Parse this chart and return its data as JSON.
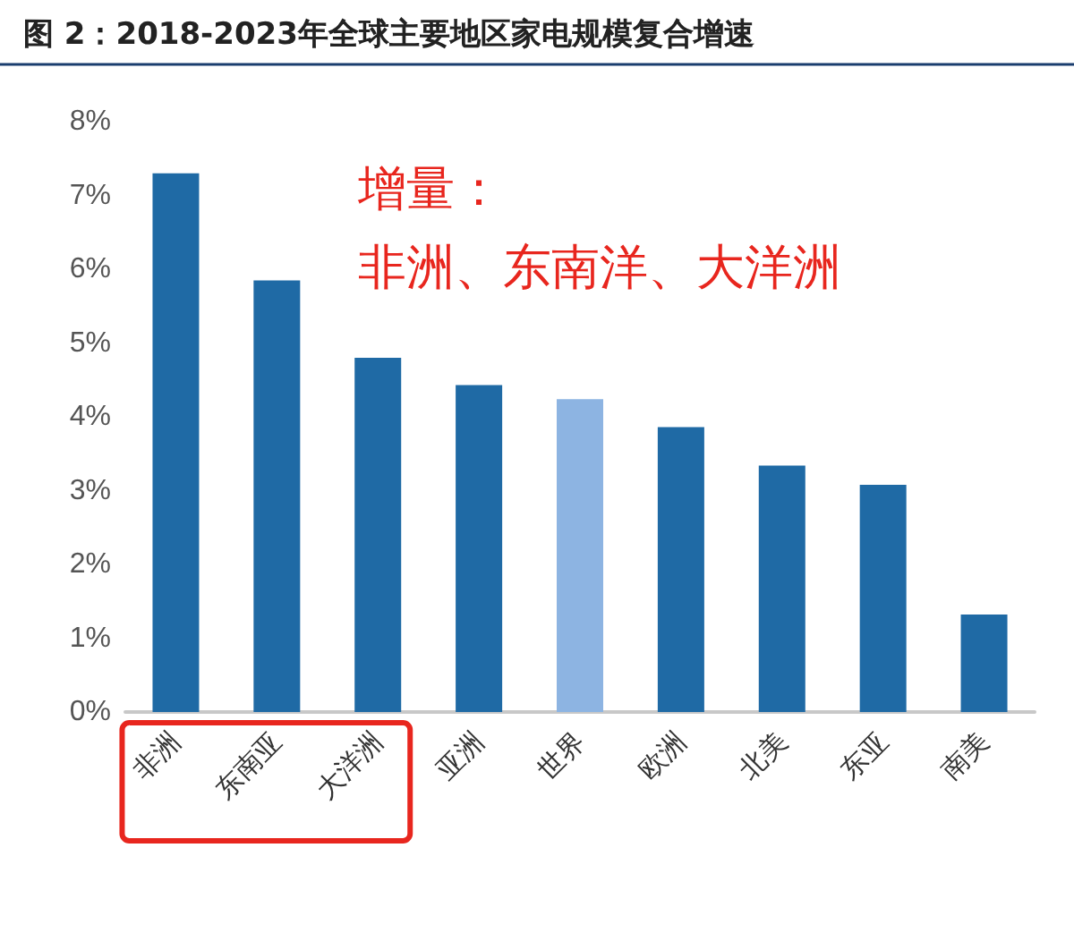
{
  "chart_data": {
    "type": "bar",
    "title": "图 2：2018-2023年全球主要地区家电规模复合增速",
    "categories": [
      "非洲",
      "东南亚",
      "大洋洲",
      "亚洲",
      "世界",
      "欧洲",
      "北美",
      "东亚",
      "南美"
    ],
    "values": [
      7.3,
      5.85,
      4.8,
      4.43,
      4.24,
      3.86,
      3.34,
      3.08,
      1.32
    ],
    "colors": [
      "#1f6aa5",
      "#1f6aa5",
      "#1f6aa5",
      "#1f6aa5",
      "#8db4e2",
      "#1f6aa5",
      "#1f6aa5",
      "#1f6aa5",
      "#1f6aa5"
    ],
    "ylim": [
      0,
      8
    ],
    "yticks": [
      {
        "value": 0,
        "label": "0%"
      },
      {
        "value": 1,
        "label": "1%"
      },
      {
        "value": 2,
        "label": "2%"
      },
      {
        "value": 3,
        "label": "3%"
      },
      {
        "value": 4,
        "label": "4%"
      },
      {
        "value": 5,
        "label": "5%"
      },
      {
        "value": 6,
        "label": "6%"
      },
      {
        "value": 7,
        "label": "7%"
      },
      {
        "value": 8,
        "label": "8%"
      }
    ],
    "annotations": [
      "增量：",
      "非洲、东南洋、大洋洲"
    ],
    "grid": false
  }
}
